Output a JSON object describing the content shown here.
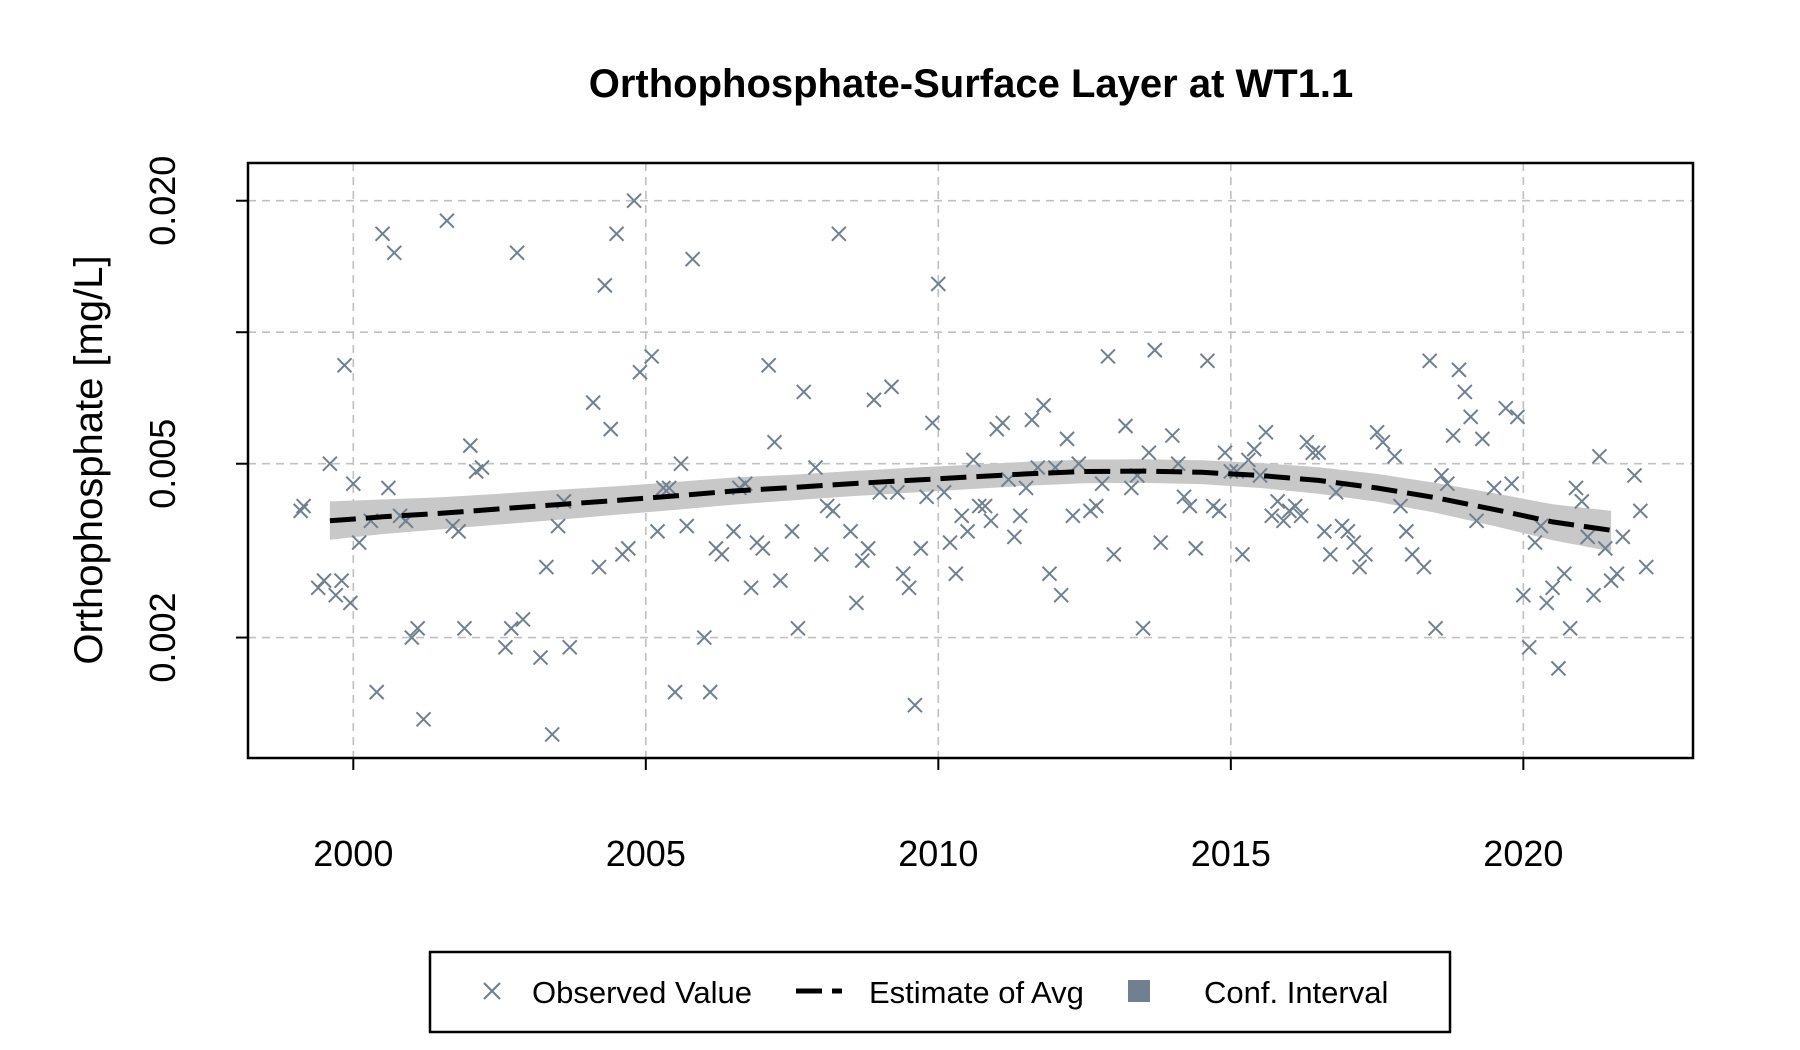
{
  "chart_data": {
    "type": "scatter",
    "title": "Orthophosphate-Surface Layer at WT1.1",
    "xlabel": "",
    "ylabel": "Orthophosphate [mg/L]",
    "x_ticks": [
      2000,
      2005,
      2010,
      2015,
      2020
    ],
    "x_tick_labels": [
      "2000",
      "2005",
      "2010",
      "2015",
      "2020"
    ],
    "xlim": [
      1998.2,
      2022.9
    ],
    "y_scale": "log",
    "y_ticks": [
      0.002,
      0.005,
      0.02
    ],
    "y_tick_labels": [
      "0.002",
      "0.005",
      "0.020"
    ],
    "y_gridlines": [
      0.002,
      0.005,
      0.01,
      0.02
    ],
    "ylim": [
      0.00106,
      0.0244
    ],
    "grid": true,
    "legend_position": "bottom",
    "legend": [
      {
        "label": "Observed Value",
        "marker": "x"
      },
      {
        "label": "Estimate of Avg",
        "marker": "dashed-line"
      },
      {
        "label": "Conf. Interval",
        "marker": "square"
      }
    ],
    "colors": {
      "observed": "#708090",
      "estimate": "#000000",
      "ci": "#c8c8c8",
      "ci_legend": "#708090",
      "grid": "#c0c0c0"
    },
    "series": [
      {
        "name": "Observed Value",
        "points": [
          [
            1999.1,
            0.0039
          ],
          [
            1999.15,
            0.004
          ],
          [
            1999.4,
            0.0026
          ],
          [
            1999.5,
            0.0027
          ],
          [
            1999.6,
            0.005
          ],
          [
            1999.7,
            0.0025
          ],
          [
            1999.8,
            0.0027
          ],
          [
            1999.85,
            0.0084
          ],
          [
            1999.95,
            0.0024
          ],
          [
            2000.0,
            0.0045
          ],
          [
            2000.1,
            0.0033
          ],
          [
            2000.3,
            0.0037
          ],
          [
            2000.4,
            0.0015
          ],
          [
            2000.5,
            0.0168
          ],
          [
            2000.6,
            0.0044
          ],
          [
            2000.7,
            0.0152
          ],
          [
            2000.8,
            0.0038
          ],
          [
            2000.9,
            0.0037
          ],
          [
            2001.0,
            0.002
          ],
          [
            2001.1,
            0.0021
          ],
          [
            2001.2,
            0.0013
          ],
          [
            2001.6,
            0.018
          ],
          [
            2001.7,
            0.0036
          ],
          [
            2001.8,
            0.0035
          ],
          [
            2001.9,
            0.0021
          ],
          [
            2002.0,
            0.0055
          ],
          [
            2002.1,
            0.0048
          ],
          [
            2002.2,
            0.0049
          ],
          [
            2002.6,
            0.0019
          ],
          [
            2002.7,
            0.0021
          ],
          [
            2002.8,
            0.0152
          ],
          [
            2002.9,
            0.0022
          ],
          [
            2003.2,
            0.0018
          ],
          [
            2003.3,
            0.0029
          ],
          [
            2003.4,
            0.0012
          ],
          [
            2003.5,
            0.0036
          ],
          [
            2003.6,
            0.0041
          ],
          [
            2003.7,
            0.0019
          ],
          [
            2004.1,
            0.0069
          ],
          [
            2004.2,
            0.0029
          ],
          [
            2004.3,
            0.0128
          ],
          [
            2004.4,
            0.006
          ],
          [
            2004.5,
            0.0168
          ],
          [
            2004.6,
            0.0031
          ],
          [
            2004.7,
            0.0032
          ],
          [
            2004.8,
            0.02
          ],
          [
            2004.9,
            0.0081
          ],
          [
            2005.1,
            0.0088
          ],
          [
            2005.2,
            0.0035
          ],
          [
            2005.3,
            0.0044
          ],
          [
            2005.4,
            0.0044
          ],
          [
            2005.5,
            0.0015
          ],
          [
            2005.6,
            0.005
          ],
          [
            2005.7,
            0.0036
          ],
          [
            2005.8,
            0.0147
          ],
          [
            2006.0,
            0.002
          ],
          [
            2006.1,
            0.0015
          ],
          [
            2006.2,
            0.0032
          ],
          [
            2006.3,
            0.0031
          ],
          [
            2006.5,
            0.0035
          ],
          [
            2006.6,
            0.0044
          ],
          [
            2006.7,
            0.0045
          ],
          [
            2006.8,
            0.0026
          ],
          [
            2006.9,
            0.0033
          ],
          [
            2007.0,
            0.0032
          ],
          [
            2007.1,
            0.0084
          ],
          [
            2007.2,
            0.0056
          ],
          [
            2007.3,
            0.0027
          ],
          [
            2007.5,
            0.0035
          ],
          [
            2007.6,
            0.0021
          ],
          [
            2007.7,
            0.0073
          ],
          [
            2007.9,
            0.0049
          ],
          [
            2008.0,
            0.0031
          ],
          [
            2008.1,
            0.004
          ],
          [
            2008.2,
            0.0039
          ],
          [
            2008.3,
            0.0168
          ],
          [
            2008.5,
            0.0035
          ],
          [
            2008.6,
            0.0024
          ],
          [
            2008.7,
            0.003
          ],
          [
            2008.8,
            0.0032
          ],
          [
            2008.9,
            0.007
          ],
          [
            2009.0,
            0.0043
          ],
          [
            2009.2,
            0.0075
          ],
          [
            2009.3,
            0.0043
          ],
          [
            2009.4,
            0.0028
          ],
          [
            2009.5,
            0.0026
          ],
          [
            2009.6,
            0.0014
          ],
          [
            2009.7,
            0.0032
          ],
          [
            2009.8,
            0.0042
          ],
          [
            2009.9,
            0.0062
          ],
          [
            2010.0,
            0.0129
          ],
          [
            2010.1,
            0.0043
          ],
          [
            2010.2,
            0.0033
          ],
          [
            2010.3,
            0.0028
          ],
          [
            2010.4,
            0.0038
          ],
          [
            2010.5,
            0.0035
          ],
          [
            2010.6,
            0.0051
          ],
          [
            2010.7,
            0.004
          ],
          [
            2010.8,
            0.004
          ],
          [
            2010.9,
            0.0037
          ],
          [
            2011.0,
            0.006
          ],
          [
            2011.1,
            0.0062
          ],
          [
            2011.2,
            0.0046
          ],
          [
            2011.3,
            0.0034
          ],
          [
            2011.4,
            0.0038
          ],
          [
            2011.5,
            0.0044
          ],
          [
            2011.6,
            0.0063
          ],
          [
            2011.7,
            0.0049
          ],
          [
            2011.8,
            0.0068
          ],
          [
            2011.9,
            0.0028
          ],
          [
            2012.0,
            0.0049
          ],
          [
            2012.1,
            0.0025
          ],
          [
            2012.2,
            0.0057
          ],
          [
            2012.3,
            0.0038
          ],
          [
            2012.4,
            0.005
          ],
          [
            2012.6,
            0.0039
          ],
          [
            2012.7,
            0.004
          ],
          [
            2012.8,
            0.0045
          ],
          [
            2012.9,
            0.0088
          ],
          [
            2013.0,
            0.0031
          ],
          [
            2013.2,
            0.0061
          ],
          [
            2013.3,
            0.0044
          ],
          [
            2013.4,
            0.0047
          ],
          [
            2013.5,
            0.0021
          ],
          [
            2013.6,
            0.0053
          ],
          [
            2013.7,
            0.0091
          ],
          [
            2013.8,
            0.0033
          ],
          [
            2014.0,
            0.0058
          ],
          [
            2014.1,
            0.005
          ],
          [
            2014.2,
            0.0042
          ],
          [
            2014.3,
            0.004
          ],
          [
            2014.4,
            0.0032
          ],
          [
            2014.6,
            0.0086
          ],
          [
            2014.7,
            0.004
          ],
          [
            2014.8,
            0.0039
          ],
          [
            2014.9,
            0.0053
          ],
          [
            2015.0,
            0.0048
          ],
          [
            2015.1,
            0.0048
          ],
          [
            2015.2,
            0.0031
          ],
          [
            2015.3,
            0.0051
          ],
          [
            2015.4,
            0.0054
          ],
          [
            2015.5,
            0.0047
          ],
          [
            2015.6,
            0.0059
          ],
          [
            2015.7,
            0.0038
          ],
          [
            2015.8,
            0.0041
          ],
          [
            2015.9,
            0.0037
          ],
          [
            2016.0,
            0.0039
          ],
          [
            2016.1,
            0.004
          ],
          [
            2016.2,
            0.0038
          ],
          [
            2016.3,
            0.0056
          ],
          [
            2016.4,
            0.0053
          ],
          [
            2016.5,
            0.0053
          ],
          [
            2016.6,
            0.0035
          ],
          [
            2016.7,
            0.0031
          ],
          [
            2016.8,
            0.0043
          ],
          [
            2016.9,
            0.0036
          ],
          [
            2017.0,
            0.0035
          ],
          [
            2017.1,
            0.0033
          ],
          [
            2017.2,
            0.0029
          ],
          [
            2017.3,
            0.0031
          ],
          [
            2017.5,
            0.0059
          ],
          [
            2017.6,
            0.0056
          ],
          [
            2017.8,
            0.0052
          ],
          [
            2017.9,
            0.004
          ],
          [
            2018.0,
            0.0035
          ],
          [
            2018.1,
            0.0031
          ],
          [
            2018.3,
            0.0029
          ],
          [
            2018.4,
            0.0086
          ],
          [
            2018.5,
            0.0021
          ],
          [
            2018.6,
            0.0047
          ],
          [
            2018.7,
            0.0045
          ],
          [
            2018.8,
            0.0058
          ],
          [
            2018.9,
            0.0082
          ],
          [
            2019.0,
            0.0073
          ],
          [
            2019.1,
            0.0064
          ],
          [
            2019.2,
            0.0037
          ],
          [
            2019.3,
            0.0057
          ],
          [
            2019.5,
            0.0044
          ],
          [
            2019.7,
            0.0067
          ],
          [
            2019.8,
            0.0045
          ],
          [
            2019.9,
            0.0064
          ],
          [
            2020.0,
            0.0025
          ],
          [
            2020.1,
            0.0019
          ],
          [
            2020.2,
            0.0033
          ],
          [
            2020.3,
            0.0036
          ],
          [
            2020.4,
            0.0024
          ],
          [
            2020.5,
            0.0026
          ],
          [
            2020.6,
            0.0017
          ],
          [
            2020.7,
            0.0028
          ],
          [
            2020.8,
            0.0021
          ],
          [
            2020.9,
            0.0044
          ],
          [
            2021.0,
            0.0041
          ],
          [
            2021.1,
            0.0034
          ],
          [
            2021.2,
            0.0025
          ],
          [
            2021.3,
            0.0052
          ],
          [
            2021.4,
            0.0032
          ],
          [
            2021.5,
            0.0027
          ],
          [
            2021.6,
            0.0028
          ],
          [
            2021.7,
            0.0034
          ],
          [
            2021.9,
            0.0047
          ],
          [
            2022.0,
            0.0039
          ],
          [
            2022.1,
            0.0029
          ]
        ]
      },
      {
        "name": "Estimate of Avg",
        "points": [
          [
            1999.6,
            0.0037
          ],
          [
            2000.5,
            0.00378
          ],
          [
            2001.5,
            0.00385
          ],
          [
            2002.5,
            0.00394
          ],
          [
            2003.5,
            0.00403
          ],
          [
            2004.5,
            0.00412
          ],
          [
            2005.5,
            0.00422
          ],
          [
            2006.5,
            0.00433
          ],
          [
            2007.5,
            0.00441
          ],
          [
            2008.5,
            0.0045
          ],
          [
            2009.5,
            0.00458
          ],
          [
            2010.5,
            0.00466
          ],
          [
            2011.5,
            0.00474
          ],
          [
            2012.5,
            0.0048
          ],
          [
            2013.5,
            0.00481
          ],
          [
            2014.5,
            0.00478
          ],
          [
            2015.5,
            0.0047
          ],
          [
            2016.5,
            0.00458
          ],
          [
            2017.5,
            0.0044
          ],
          [
            2018.5,
            0.00418
          ],
          [
            2019.5,
            0.00393
          ],
          [
            2020.5,
            0.00368
          ],
          [
            2021.5,
            0.00352
          ]
        ]
      },
      {
        "name": "Conf. Interval",
        "lower": [
          0.00335,
          0.00345,
          0.00354,
          0.00363,
          0.00372,
          0.00382,
          0.00392,
          0.00403,
          0.00412,
          0.00421,
          0.00429,
          0.00437,
          0.00445,
          0.00451,
          0.00452,
          0.00449,
          0.0044,
          0.00427,
          0.00409,
          0.00386,
          0.0036,
          0.00334,
          0.00315
        ],
        "upper": [
          0.0041,
          0.00414,
          0.00419,
          0.00427,
          0.00436,
          0.00444,
          0.00454,
          0.00465,
          0.00472,
          0.00481,
          0.00489,
          0.00497,
          0.00505,
          0.00511,
          0.00512,
          0.00509,
          0.00502,
          0.00491,
          0.00474,
          0.00452,
          0.00428,
          0.00404,
          0.0039
        ]
      }
    ]
  }
}
